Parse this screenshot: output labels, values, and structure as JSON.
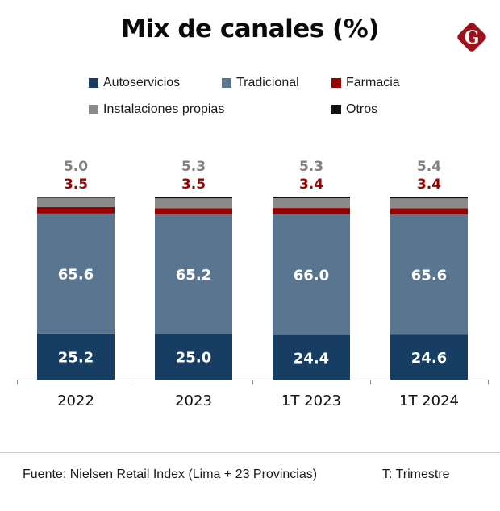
{
  "header": {
    "title": "Mix de canales (%)",
    "logo": {
      "icon": "g-diamond-logo-icon",
      "letter": "G",
      "color": "#a0101c"
    }
  },
  "legend": [
    {
      "name": "Autoservicios",
      "color": "#173d62"
    },
    {
      "name": "Tradicional",
      "color": "#5a7590"
    },
    {
      "name": "Farmacia",
      "color": "#990000"
    },
    {
      "name": "Instalaciones propias",
      "color": "#8a8a8a"
    },
    {
      "name": "Otros",
      "color": "#111111"
    }
  ],
  "chart_data": {
    "type": "bar",
    "stacked": true,
    "title": "Mix de canales (%)",
    "xlabel": "",
    "ylabel": "",
    "ylim": [
      0,
      100
    ],
    "grid": false,
    "legend_position": "top",
    "categories": [
      "2022",
      "2023",
      "1T 2023",
      "1T 2024"
    ],
    "series": [
      {
        "name": "Autoservicios",
        "color": "#173d62",
        "values": [
          25.2,
          25.0,
          24.4,
          24.6
        ],
        "labels": [
          "25.2",
          "25.0",
          "24.4",
          "24.6"
        ],
        "label_color": "#ffffff",
        "label_position": "inside"
      },
      {
        "name": "Tradicional",
        "color": "#5a7590",
        "values": [
          65.6,
          65.2,
          66.0,
          65.6
        ],
        "labels": [
          "65.6",
          "65.2",
          "66.0",
          "65.6"
        ],
        "label_color": "#ffffff",
        "label_position": "inside"
      },
      {
        "name": "Farmacia",
        "color": "#990000",
        "values": [
          3.5,
          3.5,
          3.4,
          3.4
        ],
        "labels": [
          "3.5",
          "3.5",
          "3.4",
          "3.4"
        ],
        "label_color": "#990000",
        "label_position": "above-lower"
      },
      {
        "name": "Instalaciones propias",
        "color": "#8a8a8a",
        "values": [
          5.0,
          5.3,
          5.3,
          5.4
        ],
        "labels": [
          "5.0",
          "5.3",
          "5.3",
          "5.4"
        ],
        "label_color": "#808080",
        "label_position": "above-upper"
      },
      {
        "name": "Otros",
        "color": "#111111",
        "values": [
          0.7,
          1.0,
          0.9,
          1.0
        ],
        "labels": [],
        "label_position": "none"
      }
    ]
  },
  "footer": {
    "source": "Fuente: Nielsen Retail Index (Lima + 23 Provincias)",
    "note": "T: Trimestre"
  }
}
